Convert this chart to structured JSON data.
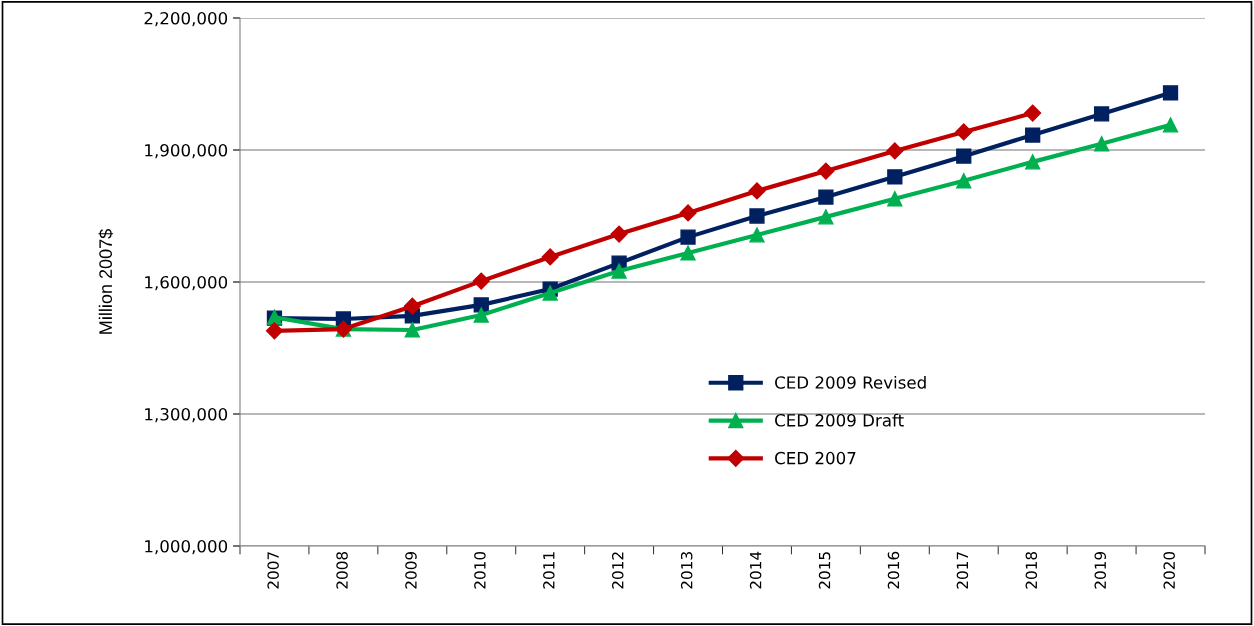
{
  "chart_data": {
    "type": "line",
    "ylabel": "Million 2007$",
    "categories": [
      "2007",
      "2008",
      "2009",
      "2010",
      "2011",
      "2012",
      "2013",
      "2014",
      "2015",
      "2016",
      "2017",
      "2018",
      "2019",
      "2020"
    ],
    "series": [
      {
        "name": "CED 2009 Revised",
        "color": "#002060",
        "marker": "square",
        "values": [
          1518000,
          1516000,
          1523000,
          1548000,
          1584000,
          1643000,
          1702000,
          1750000,
          1793000,
          1839000,
          1886000,
          1934000,
          1982000,
          2030000
        ]
      },
      {
        "name": "CED 2009 Draft",
        "color": "#00b050",
        "marker": "triangle",
        "values": [
          1520000,
          1493000,
          1491000,
          1525000,
          1575000,
          1625000,
          1666000,
          1707000,
          1748000,
          1789000,
          1830000,
          1873000,
          1914000,
          1957000
        ]
      },
      {
        "name": "CED 2007",
        "color": "#c00000",
        "marker": "diamond",
        "values": [
          1489000,
          1493000,
          1545000,
          1602000,
          1657000,
          1709000,
          1757000,
          1807000,
          1852000,
          1898000,
          1941000,
          1984000,
          null,
          null
        ]
      }
    ],
    "ylim": [
      1000000,
      2200000
    ],
    "yticks": [
      {
        "value": 1000000,
        "label": "1,000,000"
      },
      {
        "value": 1300000,
        "label": "1,300,000"
      },
      {
        "value": 1600000,
        "label": "1,600,000"
      },
      {
        "value": 1900000,
        "label": "1,900,000"
      },
      {
        "value": 2200000,
        "label": "2,200,000"
      }
    ],
    "grid": "y",
    "legend": "bottom",
    "line_style": "solid"
  }
}
